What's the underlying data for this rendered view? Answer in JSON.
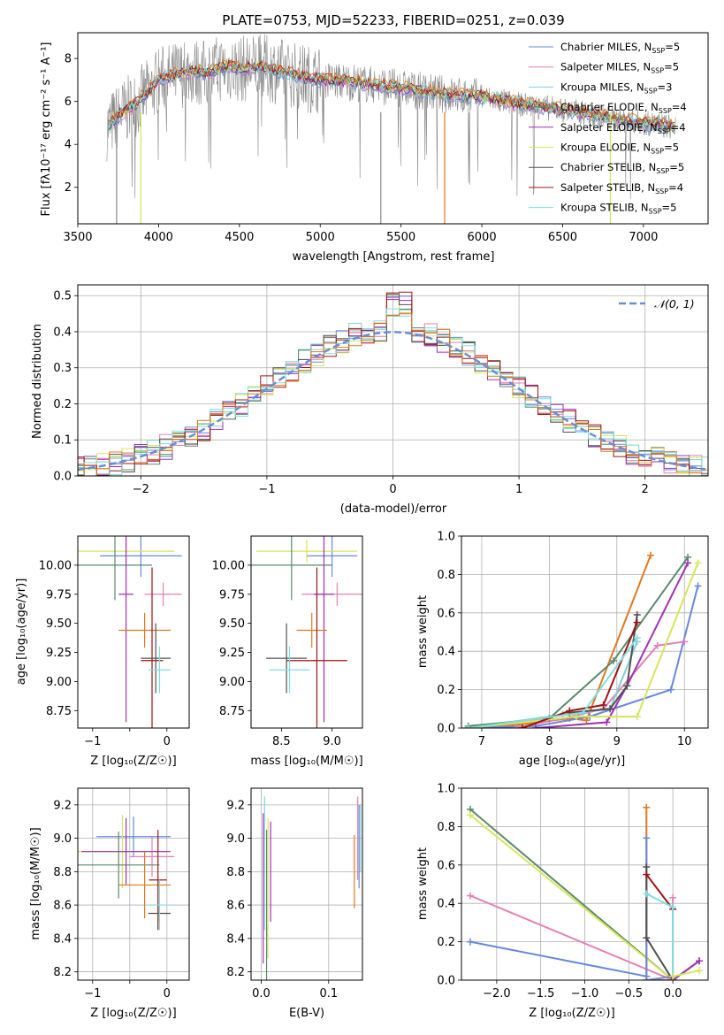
{
  "colors": [
    "#6688dd",
    "#e67fb4",
    "#7fcfd6",
    "#5a8a6a",
    "#a032b4",
    "#d6e65a",
    "#505050",
    "#a01414",
    "#80dddd"
  ],
  "extra_colors": {
    "orange": "#e07820",
    "gray": "#888888",
    "normal": "#6a8fd0"
  },
  "labels": {
    "title": "PLATE=0753, MJD=52233, FIBERID=0251, z=0.039",
    "spec_xlabel": "wavelength [Angstrom, rest frame]",
    "spec_ylabel": "Flux [fλ10⁻¹⁷ erg cm⁻² s⁻¹ A⁻¹]",
    "res_xlabel": "(data-model)/error",
    "res_ylabel": "Normed distribution",
    "norm_label": "𝒩(0, 1)",
    "Z_xlabel": "Z [log₁₀(Z/Z☉)]",
    "mass_xlabel": "mass [log₁₀(M/M☉)]",
    "age_ylabel": "age  [log₁₀(age/yr)]",
    "mass_ylabel": "mass [log₁₀(M/M☉)]",
    "mw_ylabel": "mass weight",
    "age_xlabel": "age  [log₁₀(age/yr)]",
    "ebv_xlabel": "E(B-V)"
  },
  "chart_data": [
    {
      "id": "spectrum",
      "type": "line",
      "title": "PLATE=0753, MJD=52233, FIBERID=0251, z=0.039",
      "xlabel": "wavelength [Angstrom, rest frame]",
      "ylabel": "Flux [fλ10⁻¹⁷ erg cm⁻² s⁻¹ A⁻¹]",
      "xlim": [
        3500,
        7400
      ],
      "ylim": [
        0.3,
        9.2
      ],
      "xticks": [
        3500,
        4000,
        4500,
        5000,
        5500,
        6000,
        6500,
        7000
      ],
      "yticks": [
        2,
        4,
        6,
        8
      ],
      "legend": [
        "Chabrier MILES, N_SSP=5",
        "Salpeter MILES, N_SSP=5",
        "Kroupa MILES, N_SSP=3",
        "Chabrier ELODIE, N_SSP=4",
        "Salpeter ELODIE, N_SSP=4",
        "Kroupa ELODIE, N_SSP=5",
        "Chabrier STELIB, N_SSP=5",
        "Salpeter STELIB, N_SSP=4",
        "Kroupa STELIB, N_SSP=5"
      ],
      "legend_position": "top-right",
      "continuum": {
        "x": [
          3680,
          3700,
          3750,
          3800,
          3850,
          3900,
          3950,
          4000,
          4100,
          4200,
          4300,
          4400,
          4500,
          4600,
          4700,
          4800,
          4900,
          5000,
          5200,
          5400,
          5600,
          5800,
          6000,
          6200,
          6400,
          6600,
          6800,
          7000,
          7200
        ],
        "y": [
          4.8,
          4.9,
          5.3,
          5.6,
          5.8,
          6.2,
          6.5,
          7.0,
          7.2,
          7.4,
          7.3,
          7.6,
          7.5,
          7.6,
          7.5,
          7.3,
          7.1,
          7.0,
          6.9,
          6.7,
          6.5,
          6.3,
          6.2,
          5.9,
          5.7,
          5.5,
          5.2,
          5.0,
          4.8
        ]
      }
    },
    {
      "id": "residuals",
      "type": "histogram",
      "xlabel": "(data-model)/error",
      "ylabel": "Normed distribution",
      "xlim": [
        -2.5,
        2.5
      ],
      "ylim": [
        0,
        0.53
      ],
      "xticks": [
        -2,
        -1,
        0,
        1,
        2
      ],
      "yticks": [
        0.0,
        0.1,
        0.2,
        0.3,
        0.4,
        0.5
      ],
      "legend": [
        "𝒩(0, 1)"
      ],
      "legend_position": "top-right"
    },
    {
      "id": "age_vs_Z",
      "type": "errorbar",
      "xlabel": "Z [log₁₀(Z/Z☉)]",
      "ylabel": "age  [log₁₀(age/yr)]",
      "xlim": [
        -1.2,
        0.3
      ],
      "ylim": [
        8.6,
        10.25
      ],
      "xticks": [
        -1,
        -0.5,
        0
      ],
      "xticklabels": [
        "−1",
        "",
        "0"
      ],
      "yticks": [
        8.75,
        9.0,
        9.25,
        9.5,
        9.75,
        10.0
      ],
      "points": [
        {
          "x": -0.35,
          "y": 10.08,
          "xerr": 0.55,
          "yerr": 0.18,
          "c": 0
        },
        {
          "x": -0.05,
          "y": 9.75,
          "xerr": 0.25,
          "yerr": 0.1,
          "c": 1
        },
        {
          "x": -0.55,
          "y": 10.12,
          "xerr": 0.65,
          "yerr": 0.1,
          "c": 5
        },
        {
          "x": -0.7,
          "y": 10.0,
          "xerr": 0.5,
          "yerr": 0.3,
          "c": 3
        },
        {
          "x": -0.55,
          "y": 9.75,
          "xerr": 0.1,
          "yerr": 1.1,
          "c": 4
        },
        {
          "x": -0.3,
          "y": 9.44,
          "xerr": 0.35,
          "yerr": 0.15,
          "c": 9
        },
        {
          "x": -0.2,
          "y": 9.18,
          "xerr": 0.15,
          "yerr": 0.8,
          "c": 7
        },
        {
          "x": -0.15,
          "y": 9.2,
          "xerr": 0.2,
          "yerr": 0.3,
          "c": 6
        },
        {
          "x": -0.1,
          "y": 9.1,
          "xerr": 0.15,
          "yerr": 0.2,
          "c": 8
        }
      ]
    },
    {
      "id": "age_vs_mass",
      "type": "errorbar",
      "xlabel": "mass [log₁₀(M/M☉)]",
      "xlim": [
        8.2,
        9.3
      ],
      "ylim": [
        8.6,
        10.25
      ],
      "xticks": [
        8.5,
        9.0
      ],
      "yticks": [
        8.75,
        9.0,
        9.25,
        9.5,
        9.75,
        10.0
      ],
      "points": [
        {
          "x": 9.0,
          "y": 10.08,
          "xerr": 0.25,
          "yerr": 0.18,
          "c": 0
        },
        {
          "x": 9.05,
          "y": 9.75,
          "xerr": 0.35,
          "yerr": 0.1,
          "c": 1
        },
        {
          "x": 8.75,
          "y": 10.12,
          "xerr": 0.5,
          "yerr": 0.1,
          "c": 5
        },
        {
          "x": 8.6,
          "y": 10.0,
          "xerr": 0.4,
          "yerr": 0.3,
          "c": 3
        },
        {
          "x": 8.92,
          "y": 9.75,
          "xerr": 0.1,
          "yerr": 1.1,
          "c": 4
        },
        {
          "x": 8.8,
          "y": 9.44,
          "xerr": 0.15,
          "yerr": 0.15,
          "c": 9
        },
        {
          "x": 8.85,
          "y": 9.18,
          "xerr": 0.3,
          "yerr": 0.8,
          "c": 7
        },
        {
          "x": 8.55,
          "y": 9.2,
          "xerr": 0.2,
          "yerr": 0.3,
          "c": 6
        },
        {
          "x": 8.58,
          "y": 9.1,
          "xerr": 0.2,
          "yerr": 0.2,
          "c": 8
        }
      ]
    },
    {
      "id": "mw_vs_age",
      "type": "line",
      "xlabel": "age  [log₁₀(age/yr)]",
      "ylabel": "mass weight",
      "xlim": [
        6.7,
        10.35
      ],
      "ylim": [
        0,
        1.0
      ],
      "xticks": [
        7,
        8,
        9,
        10
      ],
      "yticks": [
        0.0,
        0.2,
        0.4,
        0.6,
        0.8,
        1.0
      ],
      "series": [
        {
          "c": 9,
          "x": [
            6.8,
            7.6,
            8.3,
            8.55,
            9.5
          ],
          "y": [
            0.0,
            0.02,
            0.05,
            0.04,
            0.9
          ]
        },
        {
          "c": 0,
          "x": [
            6.8,
            7.8,
            8.6,
            9.8,
            10.2
          ],
          "y": [
            0.0,
            0.01,
            0.06,
            0.2,
            0.74
          ]
        },
        {
          "c": 1,
          "x": [
            7.5,
            8.2,
            8.8,
            9.6,
            10.0
          ],
          "y": [
            0.0,
            0.05,
            0.1,
            0.43,
            0.45
          ]
        },
        {
          "c": 2,
          "x": [
            6.8,
            8.2,
            8.9,
            9.3
          ],
          "y": [
            0.0,
            0.07,
            0.1,
            0.45
          ]
        },
        {
          "c": 3,
          "x": [
            6.8,
            8.0,
            8.95,
            10.05
          ],
          "y": [
            0.01,
            0.05,
            0.35,
            0.89
          ]
        },
        {
          "c": 4,
          "x": [
            7.8,
            8.85,
            9.15,
            10.05
          ],
          "y": [
            0.0,
            0.03,
            0.22,
            0.86
          ]
        },
        {
          "c": 5,
          "x": [
            6.8,
            8.4,
            9.3,
            10.2
          ],
          "y": [
            0.0,
            0.06,
            0.06,
            0.86
          ]
        },
        {
          "c": 6,
          "x": [
            8.3,
            8.9,
            9.15,
            9.3
          ],
          "y": [
            0.08,
            0.1,
            0.22,
            0.59
          ]
        },
        {
          "c": 7,
          "x": [
            7.6,
            8.3,
            8.8,
            9.3
          ],
          "y": [
            0.0,
            0.09,
            0.12,
            0.55
          ]
        },
        {
          "c": 8,
          "x": [
            6.8,
            8.5,
            9.3
          ],
          "y": [
            0.0,
            0.08,
            0.47
          ]
        }
      ]
    },
    {
      "id": "mass_vs_Z",
      "type": "errorbar",
      "xlabel": "Z [log₁₀(Z/Z☉)]",
      "ylabel": "mass [log₁₀(M/M☉)]",
      "xlim": [
        -1.2,
        0.3
      ],
      "ylim": [
        8.15,
        9.3
      ],
      "xticks": [
        -1,
        -0.5,
        0
      ],
      "xticklabels": [
        "−1",
        "",
        "0"
      ],
      "yticks": [
        8.2,
        8.4,
        8.6,
        8.8,
        9.0,
        9.2
      ],
      "points": [
        {
          "x": -0.45,
          "y": 9.01,
          "xerr": 0.5,
          "yerr": 0.12,
          "c": 0
        },
        {
          "x": -0.2,
          "y": 8.89,
          "xerr": 0.3,
          "yerr": 0.12,
          "c": 1
        },
        {
          "x": -0.6,
          "y": 8.92,
          "xerr": 0.6,
          "yerr": 0.22,
          "c": 5
        },
        {
          "x": -0.65,
          "y": 8.84,
          "xerr": 0.55,
          "yerr": 0.2,
          "c": 3
        },
        {
          "x": -0.55,
          "y": 8.92,
          "xerr": 0.6,
          "yerr": 0.2,
          "c": 4
        },
        {
          "x": -0.3,
          "y": 8.72,
          "xerr": 0.35,
          "yerr": 0.2,
          "c": 9
        },
        {
          "x": -0.12,
          "y": 8.75,
          "xerr": 0.12,
          "yerr": 0.3,
          "c": 7
        },
        {
          "x": -0.1,
          "y": 8.55,
          "xerr": 0.15,
          "yerr": 0.05,
          "c": 6
        },
        {
          "x": -0.1,
          "y": 8.6,
          "xerr": 0.15,
          "yerr": 0.15,
          "c": 8
        }
      ]
    },
    {
      "id": "mass_vs_ebv",
      "type": "errorbar",
      "xlabel": "E(B-V)",
      "xlim": [
        -0.015,
        0.15
      ],
      "ylim": [
        8.15,
        9.3
      ],
      "xticks": [
        0.0,
        0.1
      ],
      "yticks": [
        8.2,
        8.4,
        8.6,
        8.8,
        9.0,
        9.2
      ],
      "points": [
        {
          "x": 0.003,
          "y": 8.7,
          "xerr": 0,
          "yerr": 0.45,
          "c": 4
        },
        {
          "x": 0.005,
          "y": 8.85,
          "xerr": 0,
          "yerr": 0.4,
          "c": 2
        },
        {
          "x": 0.008,
          "y": 8.6,
          "xerr": 0,
          "yerr": 0.45,
          "c": 3
        },
        {
          "x": 0.01,
          "y": 8.7,
          "xerr": 0,
          "yerr": 0.42,
          "c": 5
        },
        {
          "x": 0.014,
          "y": 8.8,
          "xerr": 0,
          "yerr": 0.3,
          "c": 4
        },
        {
          "x": 0.138,
          "y": 8.8,
          "xerr": 0,
          "yerr": 0.22,
          "c": 9
        },
        {
          "x": 0.143,
          "y": 9.0,
          "xerr": 0,
          "yerr": 0.25,
          "c": 1
        },
        {
          "x": 0.145,
          "y": 8.95,
          "xerr": 0,
          "yerr": 0.25,
          "c": 0
        },
        {
          "x": 0.147,
          "y": 9.0,
          "xerr": 0,
          "yerr": 0.2,
          "c": 8
        }
      ]
    },
    {
      "id": "mw_vs_Z",
      "type": "line",
      "xlabel": "Z [log₁₀(Z/Z☉)]",
      "ylabel": "mass weight",
      "xlim": [
        -2.4,
        0.4
      ],
      "ylim": [
        0,
        1.0
      ],
      "xticks": [
        -2.0,
        -1.5,
        -1.0,
        -0.5,
        0.0
      ],
      "yticks": [
        0.0,
        0.2,
        0.4,
        0.6,
        0.8,
        1.0
      ],
      "series": [
        {
          "c": 3,
          "x": [
            -2.3,
            0.0
          ],
          "y": [
            0.89,
            0.0
          ]
        },
        {
          "c": 5,
          "x": [
            -2.3,
            0.0
          ],
          "y": [
            0.86,
            0.0
          ]
        },
        {
          "c": 1,
          "x": [
            -2.3,
            0.0,
            0.0
          ],
          "y": [
            0.44,
            0.0,
            0.43
          ]
        },
        {
          "c": 0,
          "x": [
            -2.3,
            -0.3
          ],
          "y": [
            0.2,
            0.02
          ]
        },
        {
          "c": 9,
          "x": [
            -0.3,
            -0.3,
            0.0
          ],
          "y": [
            0.9,
            0.0,
            0.0
          ]
        },
        {
          "c": 0,
          "x": [
            -0.3,
            -0.3,
            0.0
          ],
          "y": [
            0.74,
            0.0,
            0.02
          ]
        },
        {
          "c": 6,
          "x": [
            -0.3,
            -0.3,
            0.0,
            0.3
          ],
          "y": [
            0.59,
            0.22,
            0.0,
            0.1
          ]
        },
        {
          "c": 7,
          "x": [
            -0.3,
            0.0
          ],
          "y": [
            0.55,
            0.37
          ]
        },
        {
          "c": 8,
          "x": [
            -0.3,
            0.0,
            0.0
          ],
          "y": [
            0.45,
            0.38,
            0.0
          ]
        },
        {
          "c": 4,
          "x": [
            0.0,
            0.3
          ],
          "y": [
            0.0,
            0.1
          ]
        },
        {
          "c": 5,
          "x": [
            0.0,
            0.3
          ],
          "y": [
            0.02,
            0.05
          ]
        }
      ]
    }
  ]
}
